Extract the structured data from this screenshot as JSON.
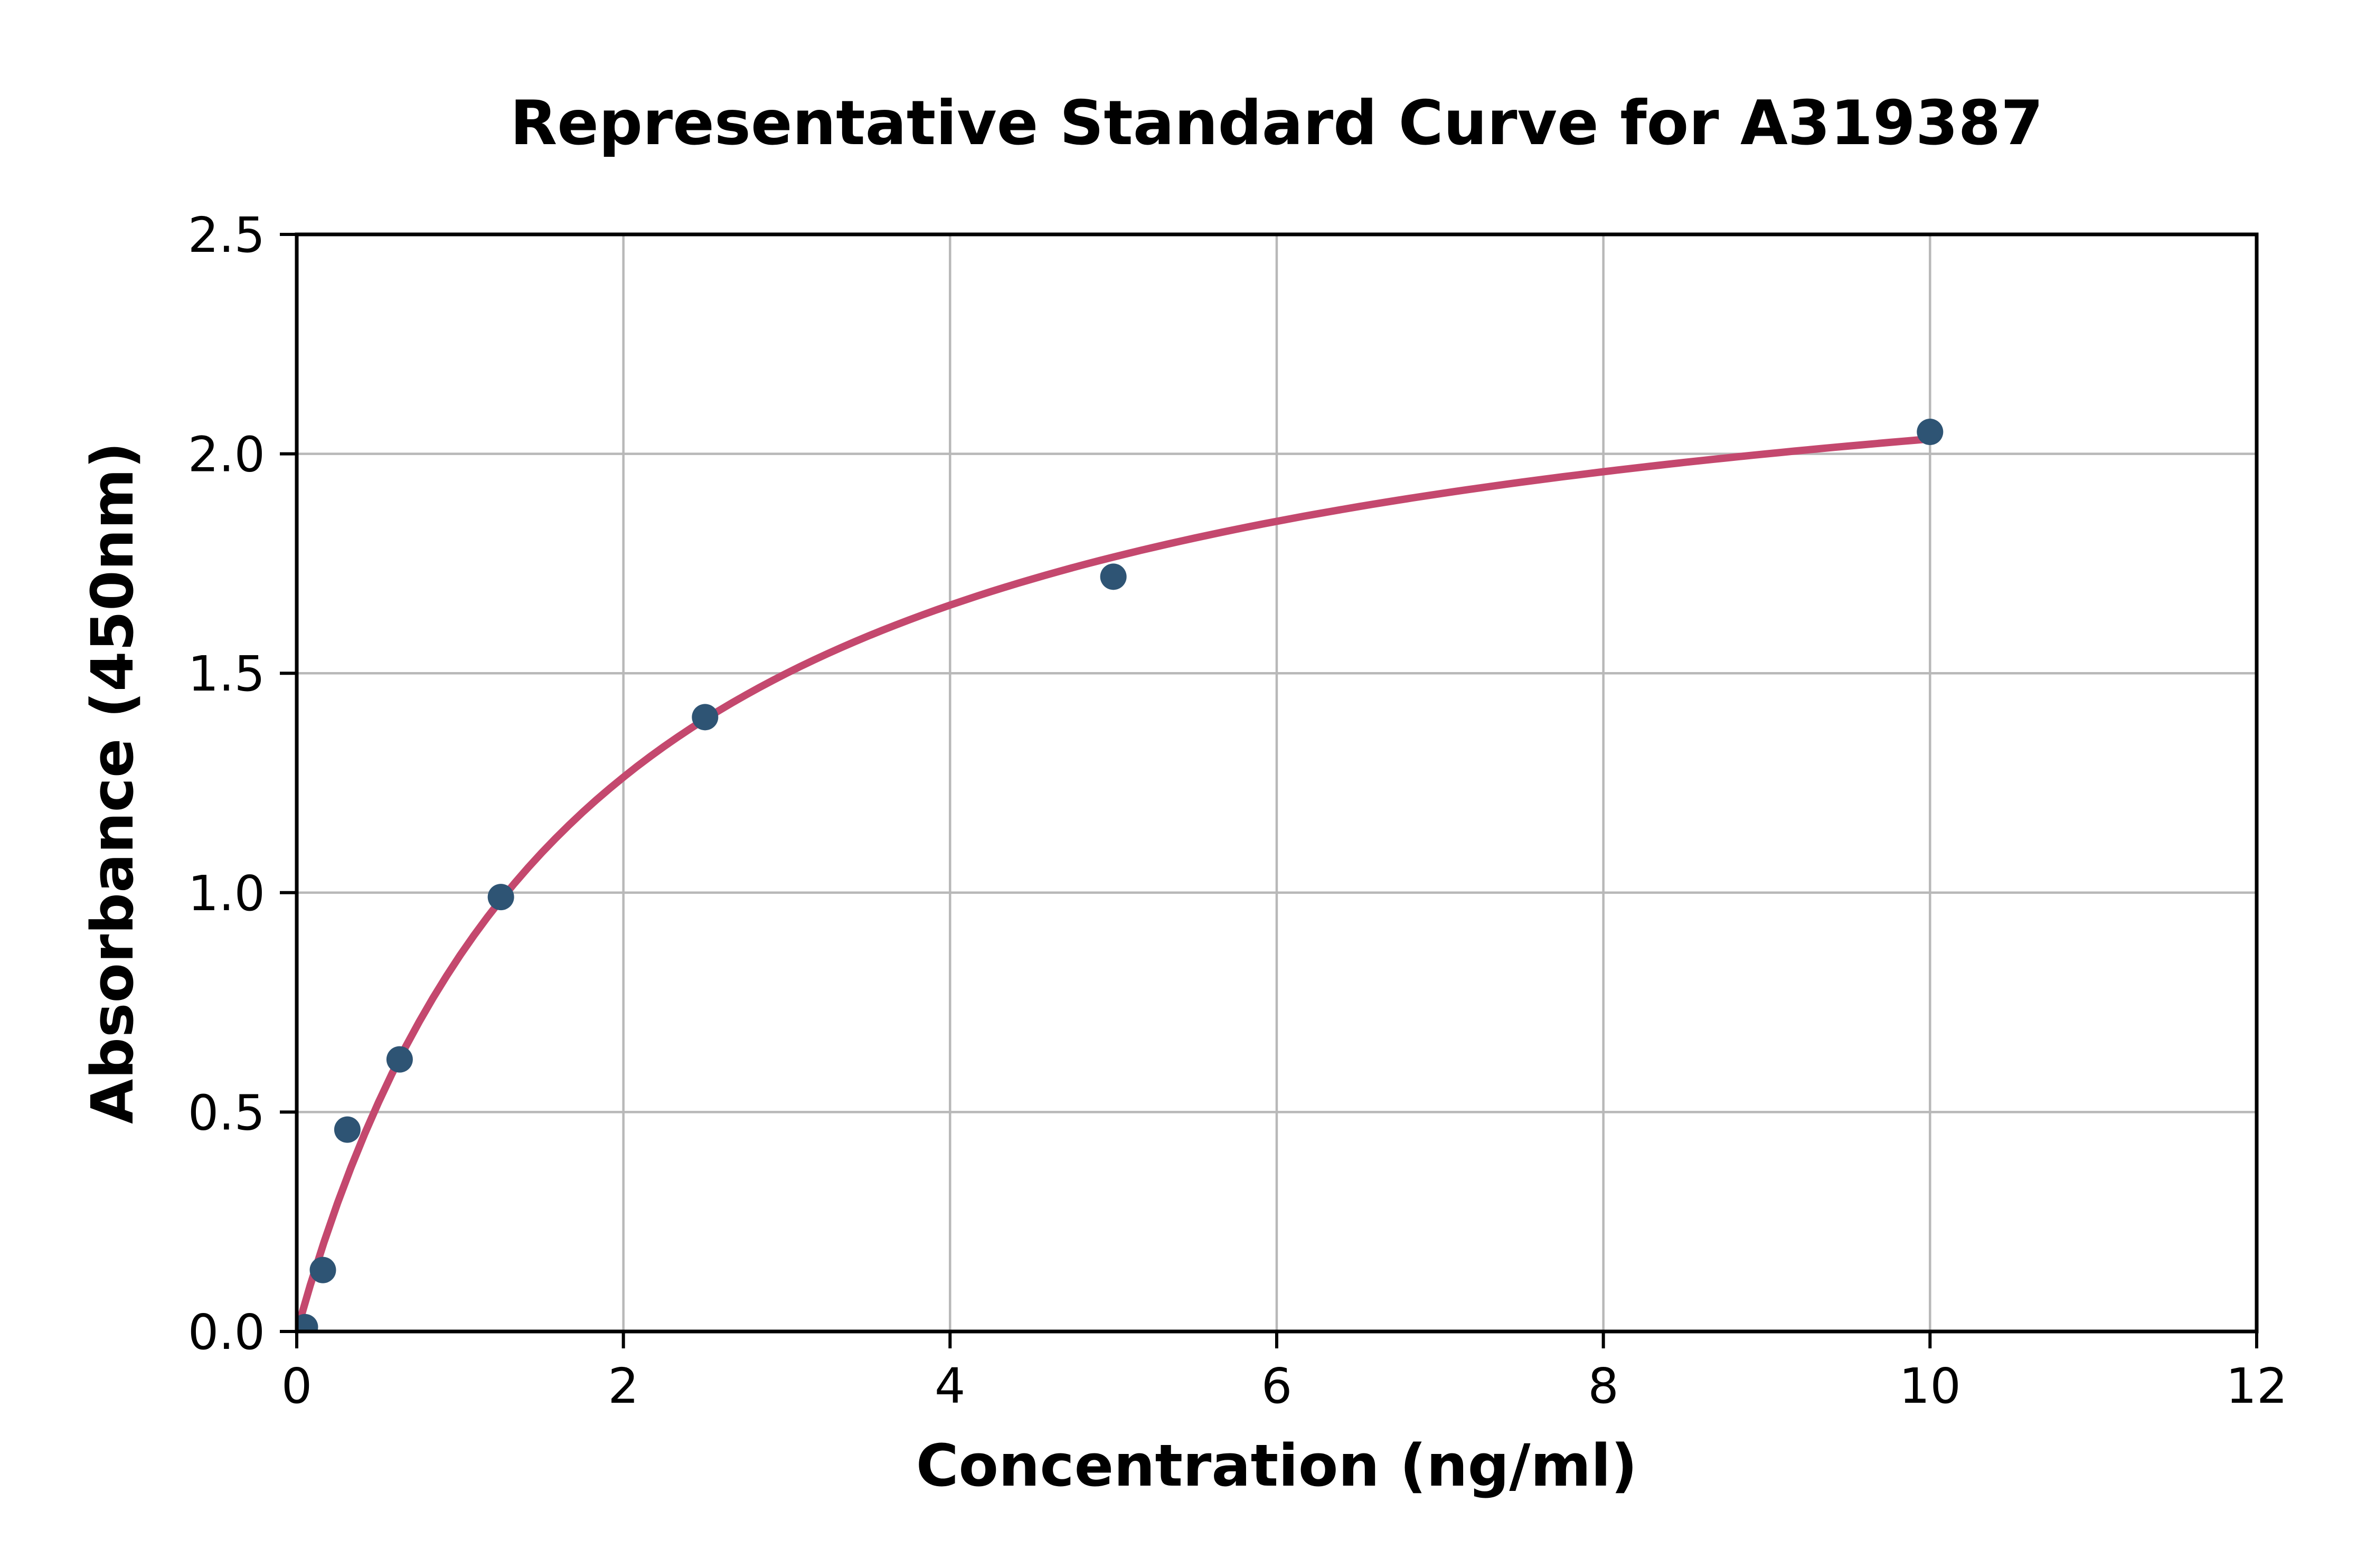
{
  "chart_data": {
    "type": "scatter",
    "title": "Representative Standard Curve for A319387",
    "xlabel": "Concentration (ng/ml)",
    "ylabel": "Absorbance (450nm)",
    "xlim": [
      0,
      12
    ],
    "ylim": [
      0,
      2.5
    ],
    "grid": true,
    "legend": "none",
    "x_tick_values": [
      0,
      2,
      4,
      6,
      8,
      10,
      12
    ],
    "x_tick_labels": [
      "0",
      "2",
      "4",
      "6",
      "8",
      "10",
      "12"
    ],
    "y_tick_values": [
      0,
      0.5,
      1.0,
      1.5,
      2.0,
      2.5
    ],
    "y_tick_labels": [
      "0.0",
      "0.5",
      "1.0",
      "1.5",
      "2.0",
      "2.5"
    ],
    "points": [
      {
        "x": 0.05,
        "y": 0.01
      },
      {
        "x": 0.16,
        "y": 0.14
      },
      {
        "x": 0.31,
        "y": 0.46
      },
      {
        "x": 0.63,
        "y": 0.62
      },
      {
        "x": 1.25,
        "y": 0.99
      },
      {
        "x": 2.5,
        "y": 1.4
      },
      {
        "x": 5.0,
        "y": 1.72
      },
      {
        "x": 10.0,
        "y": 2.05
      }
    ],
    "fit_curve": {
      "model": "y = a*x / (b + x)",
      "a": 2.4,
      "b": 1.8,
      "x_start": 0,
      "x_end": 10
    },
    "colors": {
      "point": "#2e5474",
      "curve": "#c4486e",
      "grid": "#b8b8b8",
      "axis": "#000000",
      "background": "#ffffff"
    }
  }
}
